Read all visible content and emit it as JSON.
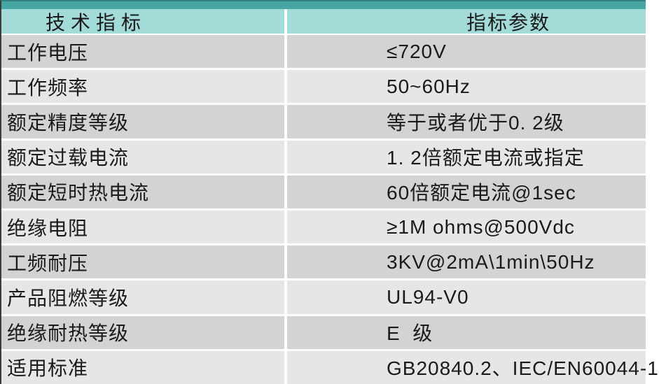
{
  "colors": {
    "teal-dark": "#47a6a4",
    "teal-light": "#a3dbd9",
    "row-dark": "#d2d3d4",
    "row-light": "#e5e6e8",
    "separator": "#ffffff",
    "text": "#1a1a1a",
    "edge-top": "#357f7e",
    "edge-left": "#3c3c3c"
  },
  "table": {
    "columns": [
      {
        "label": "技术指标"
      },
      {
        "label": "指标参数"
      }
    ],
    "rows": [
      {
        "name": "工作电压",
        "value": "≤720V"
      },
      {
        "name": "工作频率",
        "value": "50~60Hz"
      },
      {
        "name": "额定精度等级",
        "value": "等于或者优于0. 2级"
      },
      {
        "name": "额定过载电流",
        "value": "1. 2倍额定电流或指定"
      },
      {
        "name": "额定短时热电流",
        "value": "60倍额定电流@1sec"
      },
      {
        "name": "绝缘电阻",
        "value": "≥1M ohms@500Vdc"
      },
      {
        "name": "工频耐压",
        "value": "3KV@2mA\\1min\\50Hz"
      },
      {
        "name": "产品阻燃等级",
        "value": "UL94-V0"
      },
      {
        "name": "绝缘耐热等级",
        "value": "E  级"
      },
      {
        "name": "适用标准",
        "value": "GB20840.2、IEC/EN60044-1"
      }
    ]
  }
}
